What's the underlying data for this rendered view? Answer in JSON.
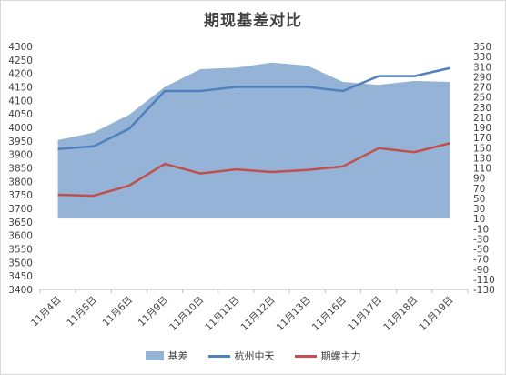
{
  "chart_data": {
    "type": "area",
    "title": "期现基差对比",
    "categories": [
      "11月4日",
      "11月5日",
      "11月6日",
      "11月9日",
      "11月10日",
      "11月11日",
      "11月12日",
      "11月13日",
      "11月16日",
      "11月17日",
      "11月18日",
      "11月19日"
    ],
    "left_axis": {
      "ylim": [
        3400,
        4300
      ],
      "ticks": [
        3400,
        3450,
        3500,
        3550,
        3600,
        3650,
        3700,
        3750,
        3800,
        3850,
        3900,
        3950,
        4000,
        4050,
        4100,
        4150,
        4200,
        4250,
        4300
      ]
    },
    "right_axis": {
      "ylim": [
        -130,
        350
      ],
      "ticks": [
        -130,
        -110,
        -90,
        -70,
        -50,
        -30,
        -10,
        10,
        30,
        50,
        70,
        90,
        110,
        130,
        150,
        170,
        190,
        210,
        230,
        250,
        270,
        290,
        310,
        330,
        350
      ]
    },
    "series": [
      {
        "name": "基差",
        "type": "area",
        "axis": "right",
        "color": "#95b3d7",
        "values": [
          165,
          180,
          215,
          270,
          305,
          308,
          318,
          312,
          280,
          274,
          282,
          280
        ]
      },
      {
        "name": "杭州中天",
        "type": "line",
        "axis": "left",
        "color": "#4f81bd",
        "values": [
          3920,
          3930,
          3995,
          4135,
          4135,
          4150,
          4150,
          4150,
          4135,
          4190,
          4190,
          4220
        ]
      },
      {
        "name": "期螺主力",
        "type": "line",
        "axis": "right",
        "color": "#c0504d",
        "values": [
          57,
          55,
          75,
          118,
          99,
          107,
          102,
          106,
          113,
          149,
          141,
          159
        ]
      }
    ],
    "grid": false,
    "legend": "bottom"
  }
}
